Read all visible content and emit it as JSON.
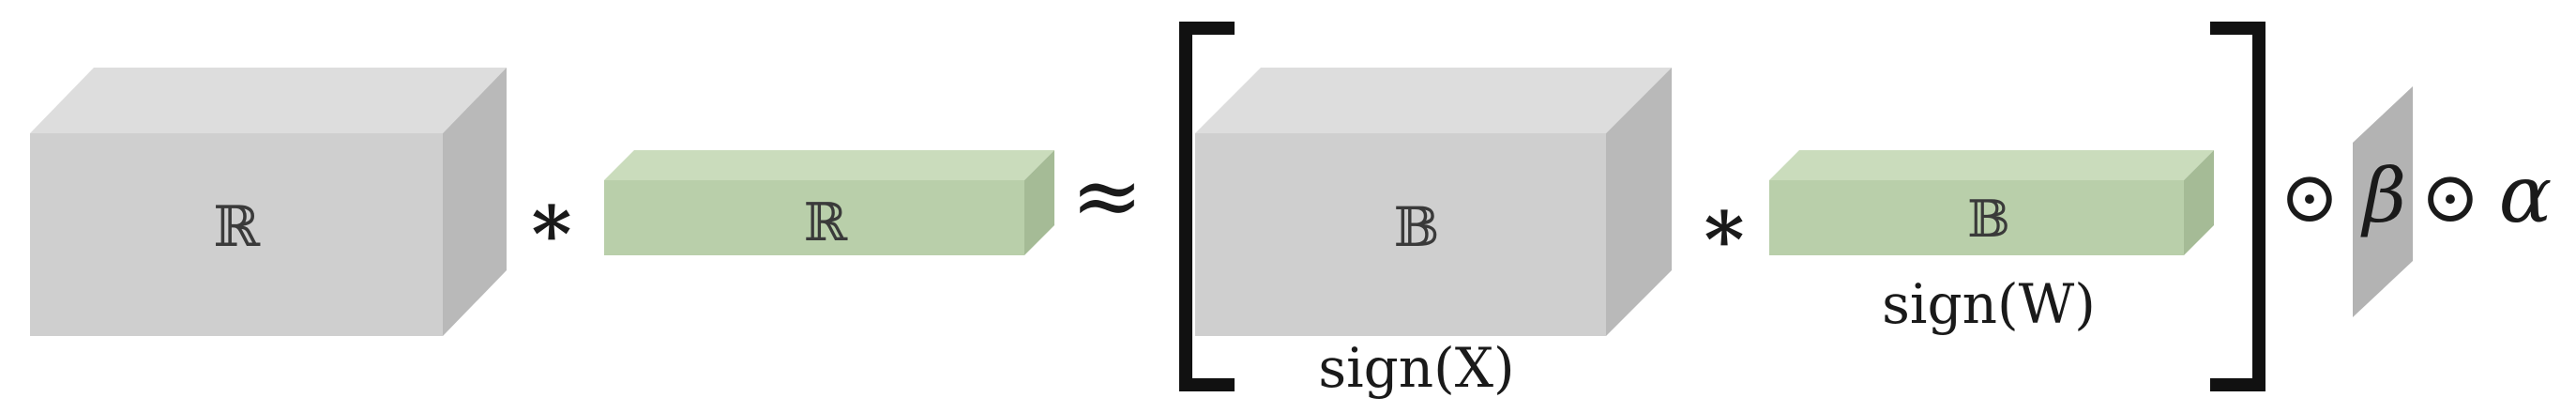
{
  "diagram": {
    "colors": {
      "activation_front": "#cfcfcf",
      "activation_top": "#dddddd",
      "activation_side": "#b9b9b9",
      "weight_front": "#b9cfaa",
      "weight_top": "#cadcbc",
      "weight_side": "#a5bb96",
      "scale_plane": "#b3b3b3",
      "ink": "#111111"
    },
    "lhs": {
      "input_block_symbol": "ℝ",
      "conv_operator": "∗",
      "weight_block_symbol": "ℝ"
    },
    "approx_symbol": "≈",
    "rhs": {
      "input_block_symbol": "𝔹",
      "input_caption": "sign(X)",
      "conv_operator": "∗",
      "weight_block_symbol": "𝔹",
      "weight_caption": "sign(W)"
    },
    "scaling": {
      "op1": "⊙",
      "beta": "β",
      "op2": "⊙",
      "alpha": "α"
    }
  }
}
